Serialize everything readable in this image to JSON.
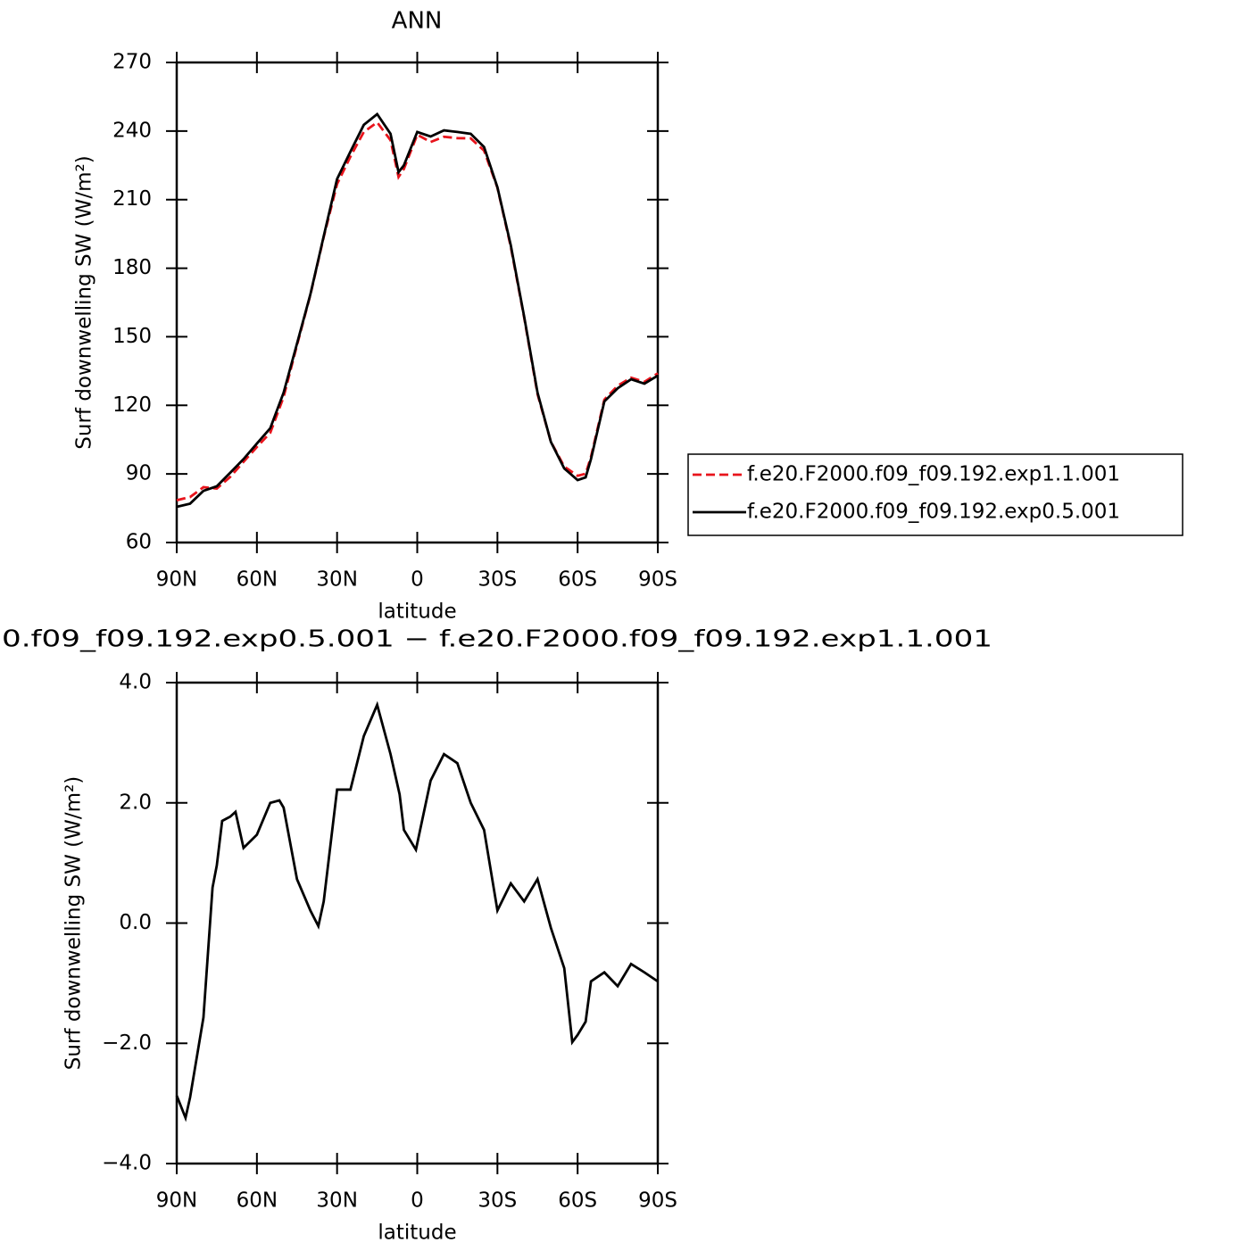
{
  "chart_data": [
    {
      "type": "line",
      "title": "ANN",
      "xlabel": "latitude",
      "ylabel": "Surf downwelling SW (W/m²)",
      "x": [
        90,
        85,
        80,
        75,
        70,
        65,
        60,
        55,
        50,
        45,
        40,
        35,
        30,
        25,
        20,
        15,
        10,
        7,
        5,
        0,
        -5,
        -10,
        -15,
        -20,
        -25,
        -30,
        -35,
        -40,
        -45,
        -50,
        -55,
        -60,
        -63,
        -65,
        -70,
        -75,
        -80,
        -85,
        -90
      ],
      "series": [
        {
          "name": "f.e20.F2000.f09_f09.192.exp1.1.001",
          "color": "#e8141c",
          "linestyle": "dashed",
          "values": [
            78.5,
            79.9,
            84.2,
            83.6,
            88.7,
            95.3,
            101.8,
            108,
            123.7,
            146.3,
            168.3,
            193.6,
            216.8,
            228.8,
            239.6,
            243.8,
            236,
            219.9,
            223.4,
            238.4,
            235.2,
            237.5,
            236.9,
            236.8,
            231.4,
            215.2,
            189.3,
            158.4,
            124.9,
            104.1,
            93.2,
            89.2,
            90.1,
            97.5,
            122.5,
            128.6,
            132.1,
            130.3,
            134
          ]
        },
        {
          "name": "f.e20.F2000.f09_f09.192.exp0.5.001",
          "color": "#000000",
          "linestyle": "solid",
          "values": [
            75.6,
            77,
            82.6,
            84.6,
            90.5,
            96.5,
            103.3,
            110,
            125.6,
            147,
            168.5,
            194,
            219,
            231,
            242.7,
            247.4,
            238.8,
            222,
            225,
            239.6,
            237.6,
            240.3,
            239.6,
            238.8,
            233,
            215.4,
            190,
            158.8,
            125.6,
            104,
            92.4,
            87.3,
            88.5,
            96.5,
            121.7,
            127.5,
            131.4,
            129.5,
            133
          ]
        }
      ],
      "xlim": [
        90,
        -90
      ],
      "xticks": [
        {
          "value": 90,
          "label": "90N"
        },
        {
          "value": 60,
          "label": "60N"
        },
        {
          "value": 30,
          "label": "30N"
        },
        0,
        {
          "value": -30,
          "label": "30S"
        },
        {
          "value": -60,
          "label": "60S"
        },
        {
          "value": -90,
          "label": "90S"
        }
      ],
      "ylim": [
        60,
        270
      ],
      "yticks": [
        60,
        90,
        120,
        150,
        180,
        210,
        240,
        270
      ],
      "legend": "right"
    },
    {
      "type": "line",
      "title": "0.f09_f09.192.exp0.5.001 − f.e20.F2000.f09_f09.192.exp1.1.001",
      "xlabel": "latitude",
      "ylabel": "Surf downwelling SW (W/m²)",
      "x": [
        90,
        86.7,
        85,
        80,
        76.6,
        75,
        73,
        70,
        68,
        65,
        60,
        55,
        51.6,
        50,
        45,
        40,
        37,
        35,
        30,
        25,
        20,
        15,
        10,
        6.6,
        5,
        0.5,
        -5,
        -10,
        -15,
        -20,
        -25,
        -30,
        -35,
        -40,
        -45,
        -50,
        -55,
        -58,
        -60,
        -63,
        -65,
        -70,
        -75,
        -80,
        -85,
        -90
      ],
      "series": [
        {
          "color": "#000000",
          "linestyle": "solid",
          "values": [
            -2.87,
            -3.24,
            -2.9,
            -1.57,
            0.59,
            0.96,
            1.7,
            1.77,
            1.85,
            1.25,
            1.47,
            2.0,
            2.04,
            1.92,
            0.73,
            0.21,
            -0.05,
            0.36,
            2.22,
            2.22,
            3.11,
            3.63,
            2.81,
            2.14,
            1.55,
            1.22,
            2.37,
            2.81,
            2.66,
            2.0,
            1.55,
            0.21,
            0.66,
            0.36,
            0.73,
            -0.08,
            -0.75,
            -1.98,
            -1.86,
            -1.64,
            -0.97,
            -0.82,
            -1.05,
            -0.68,
            -0.82,
            -0.97
          ]
        }
      ],
      "xlim": [
        90,
        -90
      ],
      "xticks": [
        {
          "value": 90,
          "label": "90N"
        },
        {
          "value": 60,
          "label": "60N"
        },
        {
          "value": 30,
          "label": "30N"
        },
        0,
        {
          "value": -30,
          "label": "30S"
        },
        {
          "value": -60,
          "label": "60S"
        },
        {
          "value": -90,
          "label": "90S"
        }
      ],
      "ylim": [
        -4,
        4
      ],
      "yticks": [
        {
          "value": -4,
          "label": "−4.0"
        },
        {
          "value": -2,
          "label": "−2.0"
        },
        {
          "value": 0,
          "label": "0.0"
        },
        {
          "value": 2,
          "label": "2.0"
        },
        {
          "value": 4,
          "label": "4.0"
        }
      ]
    }
  ]
}
